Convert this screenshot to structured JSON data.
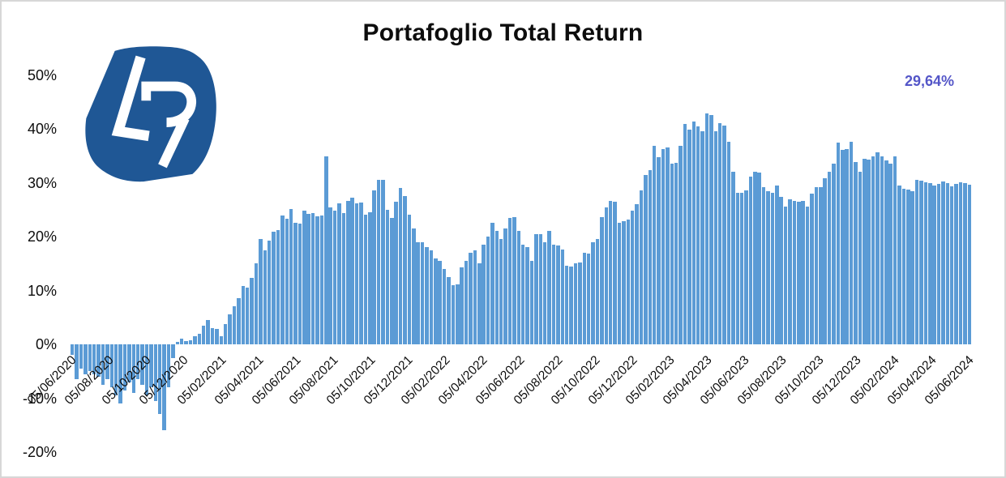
{
  "title": "Portafoglio Total Return",
  "annotation": {
    "label": "29,64%",
    "color": "#5456C8"
  },
  "logo": {
    "letters": "LR",
    "bg_color": "#1F5795",
    "letter_color": "#FFFFFF"
  },
  "colors": {
    "bar": "#5B9BD5",
    "text": "#0D0D0D",
    "frame_border": "#D7D7D7"
  },
  "chart_data": {
    "type": "bar",
    "title": "Portafoglio Total Return",
    "xlabel": "",
    "ylabel": "",
    "series_name": "Portafoglio Total Return",
    "ylim": [
      -20,
      50
    ],
    "grid": false,
    "legend": null,
    "y_ticks": [
      {
        "label": "50%",
        "value": 50
      },
      {
        "label": "40%",
        "value": 40
      },
      {
        "label": "30%",
        "value": 30
      },
      {
        "label": "20%",
        "value": 20
      },
      {
        "label": "10%",
        "value": 10
      },
      {
        "label": "0%",
        "value": 0
      },
      {
        "label": "-10%",
        "value": -10
      },
      {
        "label": "-20%",
        "value": -20
      }
    ],
    "x_tick_labels": [
      "05/06/2020",
      "05/08/2020",
      "05/10/2020",
      "05/12/2020",
      "05/02/2021",
      "05/04/2021",
      "05/06/2021",
      "05/08/2021",
      "05/10/2021",
      "05/12/2021",
      "05/02/2022",
      "05/04/2022",
      "05/06/2022",
      "05/08/2022",
      "05/10/2022",
      "05/12/2022",
      "05/02/2023",
      "05/04/2023",
      "05/06/2023",
      "05/08/2023",
      "05/10/2023",
      "05/12/2023",
      "05/02/2024",
      "05/04/2024",
      "05/06/2024"
    ],
    "values": [
      -2,
      -6.5,
      -4.5,
      -5.5,
      -5,
      -5.5,
      -6,
      -7.5,
      -6.5,
      -8,
      -9.5,
      -11,
      -8.5,
      -7,
      -9,
      -6.5,
      -7.5,
      -9.5,
      -8,
      -10.5,
      -13,
      -16,
      -8,
      -2.5,
      0.5,
      1,
      0.6,
      0.8,
      1.5,
      2,
      3.5,
      4.5,
      3,
      2.8,
      1.5,
      3.8,
      5.5,
      7,
      8.5,
      10.8,
      10.5,
      12.3,
      15,
      19.5,
      17.5,
      19.3,
      20.9,
      21.2,
      23.9,
      23.3,
      25.1,
      22.6,
      22.4,
      24.8,
      24.2,
      24.3,
      23.7,
      23.9,
      34.9,
      25.4,
      24.8,
      26.1,
      24.3,
      26.6,
      27.2,
      26.1,
      26.3,
      24,
      24.5,
      28.5,
      30.5,
      30.5,
      25,
      23.5,
      26.5,
      29,
      27.5,
      24,
      21.5,
      19,
      19,
      18,
      17.5,
      16,
      15.5,
      14,
      12.5,
      11,
      11.2,
      14.3,
      15.5,
      17,
      17.5,
      15,
      18.5,
      20,
      22.5,
      21,
      19.5,
      21.5,
      23.5,
      23.6,
      21,
      18.5,
      18,
      15.5,
      20.5,
      20.5,
      19,
      21,
      18.5,
      18.3,
      17.6,
      14.6,
      14.5,
      15,
      15.2,
      17,
      16.8,
      19,
      19.6,
      23.6,
      25.4,
      26.6,
      26.4,
      22.6,
      22.8,
      23.2,
      24.8,
      26,
      28.6,
      31.4,
      32.4,
      36.8,
      34.8,
      36.3,
      36.6,
      33.6,
      33.7,
      36.9,
      40.9,
      39.9,
      41.4,
      40.4,
      39.6,
      42.9,
      42.6,
      39.6,
      41.1,
      40.6,
      37.6,
      32.1,
      28.1,
      28.1,
      28.6,
      31.1,
      32.1,
      31.9,
      29.1,
      28.4,
      28.1,
      29.4,
      27.4,
      25.6,
      26.9,
      26.6,
      26.4,
      26.6,
      25.6,
      27.9,
      29.1,
      29.1,
      30.9,
      32.1,
      33.6,
      37.4,
      36.1,
      36.3,
      37.6,
      33.9,
      32.1,
      34.4,
      34.3,
      34.9,
      35.6,
      34.9,
      34.1,
      33.6,
      34.9,
      29.4,
      28.9,
      28.7,
      28.4,
      30.6,
      30.4,
      30.1,
      29.9,
      29.5,
      29.8,
      30.2,
      30,
      29.3,
      29.8,
      30.1,
      29.9,
      29.64
    ]
  }
}
